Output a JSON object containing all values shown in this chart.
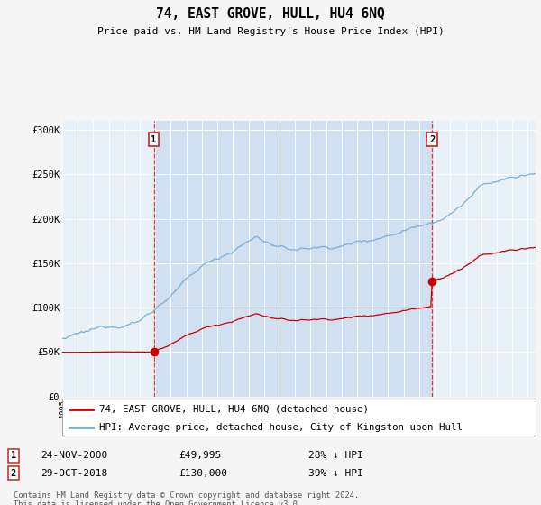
{
  "title": "74, EAST GROVE, HULL, HU4 6NQ",
  "subtitle": "Price paid vs. HM Land Registry's House Price Index (HPI)",
  "ylabel_ticks": [
    "£0",
    "£50K",
    "£100K",
    "£150K",
    "£200K",
    "£250K",
    "£300K"
  ],
  "ytick_vals": [
    0,
    50000,
    100000,
    150000,
    200000,
    250000,
    300000
  ],
  "ylim": [
    0,
    310000
  ],
  "xlim_start": 1995.0,
  "xlim_end": 2025.5,
  "purchase1_date": 2000.9,
  "purchase1_price": 49995,
  "purchase2_date": 2018.83,
  "purchase2_price": 130000,
  "red_line_color": "#cc0000",
  "blue_line_color": "#7aafd4",
  "dashed_line_color": "#ee3333",
  "fill_color": "#ccddf0",
  "background_color": "#f5f5f5",
  "plot_bg_color": "#e8f0f8",
  "legend1_label": "74, EAST GROVE, HULL, HU4 6NQ (detached house)",
  "legend2_label": "HPI: Average price, detached house, City of Kingston upon Hull",
  "annotation1_date": "24-NOV-2000",
  "annotation1_price": "£49,995",
  "annotation1_hpi": "28% ↓ HPI",
  "annotation2_date": "29-OCT-2018",
  "annotation2_price": "£130,000",
  "annotation2_hpi": "39% ↓ HPI",
  "footer": "Contains HM Land Registry data © Crown copyright and database right 2024.\nThis data is licensed under the Open Government Licence v3.0."
}
